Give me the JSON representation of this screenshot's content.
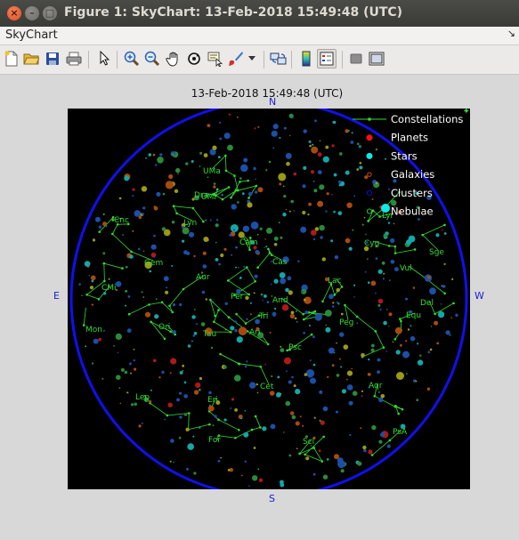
{
  "window": {
    "title": "Figure 1: SkyChart: 13-Feb-2018 15:49:48 (UTC)",
    "close_glyph": "×",
    "min_glyph": "–",
    "max_glyph": "□"
  },
  "menubar": {
    "label": "SkyChart",
    "arrow": "↘"
  },
  "toolbar": {
    "buttons": [
      "new-file-icon",
      "open-folder-icon",
      "save-icon",
      "print-icon",
      "pointer-icon",
      "zoom-in-icon",
      "zoom-out-icon",
      "pan-hand-icon",
      "rotate-3d-icon",
      "data-cursor-icon",
      "brush-icon",
      "dropdown-arrow-icon",
      "link-plot-icon",
      "colorbar-icon",
      "legend-icon",
      "hide-plot-tools-icon",
      "show-plot-tools-icon"
    ]
  },
  "plot": {
    "title": "13-Feb-2018 15:49:48 (UTC)",
    "cardinals": {
      "n": "N",
      "s": "S",
      "e": "E",
      "w": "W"
    },
    "legend": [
      "Constellations",
      "Planets",
      "Stars",
      "Galaxies",
      "Clusters",
      "Nebulae"
    ],
    "constellations": [
      "UMi",
      "Dra",
      "UMa",
      "Lyn",
      "Cnc",
      "Cam",
      "Cas",
      "Cyg",
      "Lyr",
      "Sge",
      "Vul",
      "Gem",
      "CMi",
      "Aur",
      "Per",
      "And",
      "Lac",
      "Del",
      "Equ",
      "Tri",
      "Peg",
      "Ari",
      "Mon",
      "Ori",
      "Tau",
      "Psc",
      "Cet",
      "Aqr",
      "Lep",
      "Eri",
      "PsA",
      "For",
      "Scl"
    ]
  },
  "colors": {
    "horizon": "#1010ee",
    "constellation": "#33dd33",
    "planet": "#ff1010",
    "star": "#10e8e8",
    "galaxy": "#ee5010",
    "cluster": "#1010ee",
    "nebula": "#33dd33"
  }
}
